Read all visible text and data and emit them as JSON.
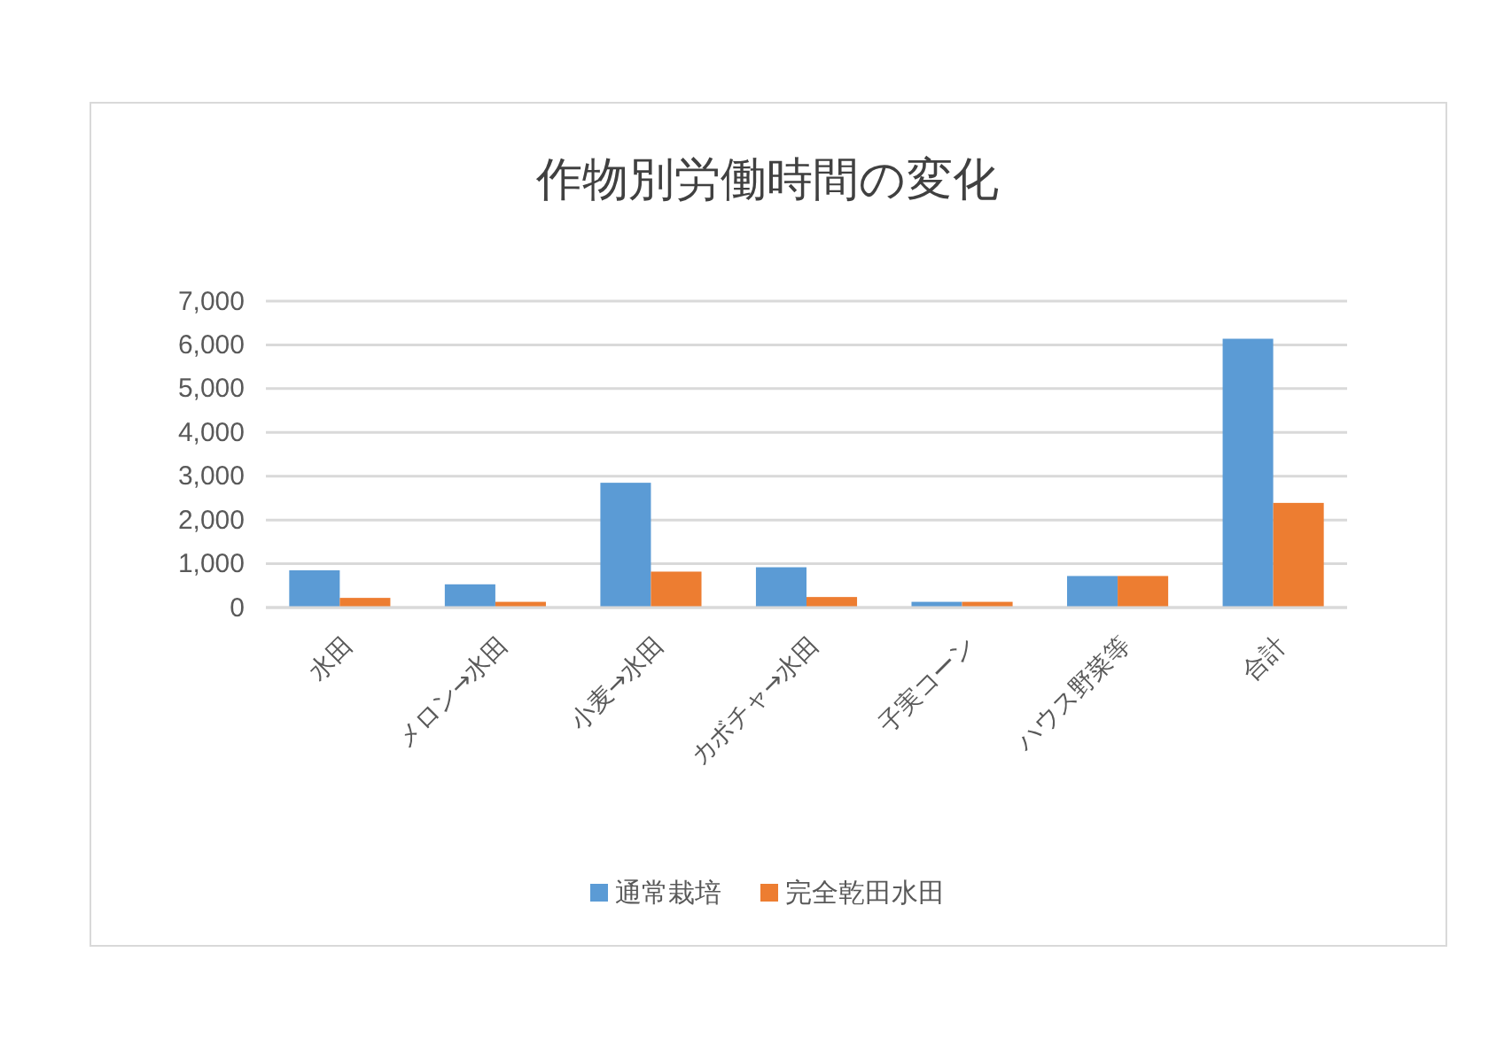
{
  "chart_data": {
    "type": "bar",
    "title": "作物別労働時間の変化",
    "categories": [
      "水田",
      "メロン→水田",
      "小麦→水田",
      "カボチャ→水田",
      "子実コーン",
      "ハウス野菜等",
      "合計"
    ],
    "series": [
      {
        "name": "通常栽培",
        "color": "#5b9bd5",
        "values": [
          850,
          530,
          2850,
          920,
          130,
          720,
          6140
        ]
      },
      {
        "name": "完全乾田水田",
        "color": "#ed7d31",
        "values": [
          220,
          130,
          820,
          240,
          130,
          720,
          2390
        ]
      }
    ],
    "ylim": [
      0,
      7000
    ],
    "yticks": [
      {
        "value": 0,
        "label": "0"
      },
      {
        "value": 1000,
        "label": "1,000"
      },
      {
        "value": 2000,
        "label": "2,000"
      },
      {
        "value": 3000,
        "label": "3,000"
      },
      {
        "value": 4000,
        "label": "4,000"
      },
      {
        "value": 5000,
        "label": "5,000"
      },
      {
        "value": 6000,
        "label": "6,000"
      },
      {
        "value": 7000,
        "label": "7,000"
      }
    ],
    "grid": "y",
    "legend": "bottom"
  }
}
